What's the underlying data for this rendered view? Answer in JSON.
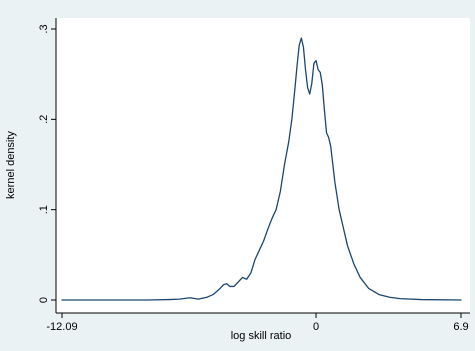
{
  "chart_data": {
    "type": "line",
    "title": "",
    "xlabel": "log skill ratio",
    "ylabel": "kernel density",
    "xlim": [
      -12.09,
      6.9
    ],
    "ylim": [
      0,
      0.3
    ],
    "x_ticks": [
      {
        "value": -12.09,
        "label": "-12.09"
      },
      {
        "value": 0,
        "label": "0"
      },
      {
        "value": 6.9,
        "label": "6.9"
      }
    ],
    "y_ticks": [
      {
        "value": 0,
        "label": "0"
      },
      {
        "value": 0.1,
        "label": ".1"
      },
      {
        "value": 0.2,
        "label": ".2"
      },
      {
        "value": 0.3,
        "label": ".3"
      }
    ],
    "grid": false,
    "legend": "none",
    "series": [
      {
        "color": "#1a476f",
        "points": [
          [
            -12.09,
            0.0
          ],
          [
            -10.0,
            0.0
          ],
          [
            -8.0,
            0.0
          ],
          [
            -7.0,
            0.0005
          ],
          [
            -6.5,
            0.001
          ],
          [
            -6.0,
            0.0025
          ],
          [
            -5.6,
            0.001
          ],
          [
            -5.2,
            0.003
          ],
          [
            -4.9,
            0.006
          ],
          [
            -4.6,
            0.012
          ],
          [
            -4.4,
            0.017
          ],
          [
            -4.25,
            0.018
          ],
          [
            -4.1,
            0.015
          ],
          [
            -3.9,
            0.015
          ],
          [
            -3.7,
            0.02
          ],
          [
            -3.5,
            0.025
          ],
          [
            -3.3,
            0.023
          ],
          [
            -3.1,
            0.03
          ],
          [
            -2.9,
            0.045
          ],
          [
            -2.7,
            0.055
          ],
          [
            -2.5,
            0.065
          ],
          [
            -2.3,
            0.078
          ],
          [
            -2.1,
            0.09
          ],
          [
            -1.9,
            0.1
          ],
          [
            -1.7,
            0.12
          ],
          [
            -1.5,
            0.15
          ],
          [
            -1.3,
            0.175
          ],
          [
            -1.15,
            0.2
          ],
          [
            -1.0,
            0.235
          ],
          [
            -0.9,
            0.26
          ],
          [
            -0.8,
            0.282
          ],
          [
            -0.7,
            0.29
          ],
          [
            -0.6,
            0.28
          ],
          [
            -0.5,
            0.255
          ],
          [
            -0.4,
            0.235
          ],
          [
            -0.3,
            0.228
          ],
          [
            -0.2,
            0.24
          ],
          [
            -0.1,
            0.262
          ],
          [
            0.0,
            0.265
          ],
          [
            0.1,
            0.255
          ],
          [
            0.2,
            0.252
          ],
          [
            0.3,
            0.238
          ],
          [
            0.4,
            0.21
          ],
          [
            0.5,
            0.185
          ],
          [
            0.6,
            0.18
          ],
          [
            0.7,
            0.17
          ],
          [
            0.8,
            0.15
          ],
          [
            0.9,
            0.13
          ],
          [
            1.1,
            0.1
          ],
          [
            1.3,
            0.08
          ],
          [
            1.5,
            0.06
          ],
          [
            1.8,
            0.04
          ],
          [
            2.1,
            0.025
          ],
          [
            2.5,
            0.013
          ],
          [
            3.0,
            0.006
          ],
          [
            3.5,
            0.003
          ],
          [
            4.0,
            0.0015
          ],
          [
            5.0,
            0.0005
          ],
          [
            6.9,
            0.0
          ]
        ]
      }
    ]
  }
}
